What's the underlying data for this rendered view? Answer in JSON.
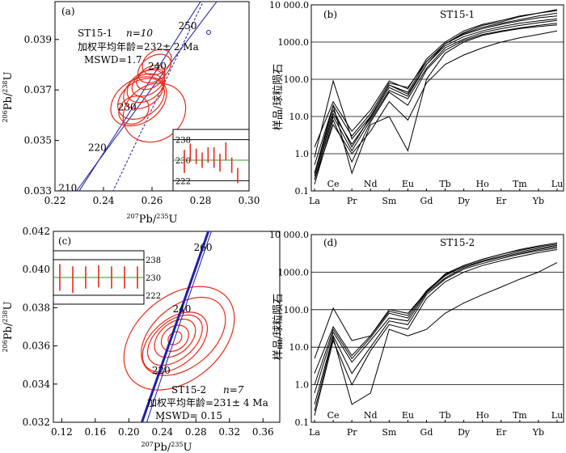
{
  "chart_data": [
    {
      "type": "scatter",
      "panel": "(a)",
      "sample": "ST15-1",
      "n_label": "n=10",
      "stat_age": "加权平均年龄=232± 2 Ma",
      "stat_mswd": "MSWD=1.7",
      "xlim": [
        0.22,
        0.3
      ],
      "ylim": [
        0.033,
        0.0405
      ],
      "xticks": [
        "0.22",
        "0.24",
        "0.26",
        "0.28",
        "0.30"
      ],
      "yticks": [
        "0.033",
        "0.035",
        "0.037",
        "0.039"
      ],
      "xlabel_pre": "207",
      "xlabel_mid": "Pb/",
      "xlabel_sup2": "235",
      "xlabel_post": "U",
      "ylabel_pre": "206",
      "ylabel_mid": "Pb/",
      "ylabel_sup2": "238",
      "ylabel_post": "U",
      "concordia_ages": [
        "210",
        "220",
        "230",
        "240",
        "250"
      ],
      "ellipses": [
        {
          "x": 0.2545,
          "y": 0.03655,
          "rx": 0.0125,
          "ry": 0.00085
        },
        {
          "x": 0.2555,
          "y": 0.03665,
          "rx": 0.0105,
          "ry": 0.0007
        },
        {
          "x": 0.2565,
          "y": 0.03695,
          "rx": 0.009,
          "ry": 0.0006
        },
        {
          "x": 0.2575,
          "y": 0.03715,
          "rx": 0.0085,
          "ry": 0.00055
        },
        {
          "x": 0.2585,
          "y": 0.0373,
          "rx": 0.0075,
          "ry": 0.00045
        },
        {
          "x": 0.2595,
          "y": 0.0375,
          "rx": 0.0065,
          "ry": 0.0004
        },
        {
          "x": 0.261,
          "y": 0.03785,
          "rx": 0.0075,
          "ry": 0.00048
        },
        {
          "x": 0.262,
          "y": 0.0381,
          "rx": 0.0065,
          "ry": 0.00045
        },
        {
          "x": 0.2525,
          "y": 0.0362,
          "rx": 0.0065,
          "ry": 0.00052
        },
        {
          "x": 0.261,
          "y": 0.0361,
          "rx": 0.0135,
          "ry": 0.0011
        }
      ],
      "inset": {
        "yticks": [
          "238",
          "230",
          "222"
        ],
        "mean": 230,
        "bars": [
          {
            "center": 229.5,
            "err": 4.5
          },
          {
            "center": 233,
            "err": 3.5
          },
          {
            "center": 231.5,
            "err": 3
          },
          {
            "center": 230,
            "err": 3
          },
          {
            "center": 232,
            "err": 3
          },
          {
            "center": 231,
            "err": 4
          },
          {
            "center": 229,
            "err": 3.5
          },
          {
            "center": 233.5,
            "err": 3.5
          },
          {
            "center": 228,
            "err": 3
          },
          {
            "center": 224,
            "err": 3
          }
        ]
      }
    },
    {
      "type": "line",
      "panel": "(b)",
      "sample": "ST15-1",
      "ylabel": "样品/球粒陨石",
      "yscale": "log",
      "ylim": [
        0.1,
        10000
      ],
      "yticks": [
        "0.1",
        "1.0",
        "10.0",
        "100.0",
        "1000.0",
        "10 000.0"
      ],
      "xlabels_bottom": [
        "La",
        "Pr",
        "Sm",
        "Gd",
        "Dy",
        "Er",
        "Yb"
      ],
      "xlabels_top": [
        "Ce",
        "Nd",
        "Eu",
        "Tb",
        "Ho",
        "Tm",
        "Lu"
      ],
      "series": [
        {
          "values": [
            0.8,
            90,
            2.5,
            10,
            70,
            40,
            250,
            900,
            1800,
            2800,
            3500,
            4800,
            6000,
            7500
          ]
        },
        {
          "values": [
            1.5,
            25,
            4,
            15,
            90,
            55,
            350,
            1000,
            2000,
            3000,
            3800,
            5000,
            6000,
            7000
          ]
        },
        {
          "values": [
            0.5,
            20,
            3,
            12,
            80,
            60,
            300,
            900,
            1700,
            2500,
            3200,
            4000,
            5000,
            6000
          ]
        },
        {
          "values": [
            0.3,
            15,
            1.5,
            10,
            70,
            45,
            300,
            900,
            1600,
            2300,
            3000,
            3700,
            4500,
            5000
          ]
        },
        {
          "values": [
            0.25,
            12,
            1.8,
            9,
            60,
            35,
            250,
            800,
            1400,
            2000,
            2600,
            3200,
            3700,
            4200
          ]
        },
        {
          "values": [
            0.2,
            10,
            1.2,
            8,
            50,
            30,
            200,
            700,
            1200,
            1800,
            2300,
            2800,
            3300,
            3800
          ]
        },
        {
          "values": [
            0.15,
            8,
            0.6,
            7,
            45,
            20,
            180,
            600,
            1100,
            1600,
            2000,
            2400,
            2800,
            3200
          ]
        },
        {
          "values": [
            0.3,
            20,
            0.3,
            6,
            10,
            1.2,
            100,
            500,
            1000,
            1500,
            1900,
            2300,
            2600,
            2900
          ]
        },
        {
          "values": [
            0.2,
            6,
            1.0,
            4,
            25,
            8,
            80,
            250,
            450,
            700,
            1000,
            1300,
            1600,
            2000
          ]
        }
      ]
    },
    {
      "type": "scatter",
      "panel": "(c)",
      "sample": "ST15-2",
      "n_label": "n=7",
      "stat_age": "加权平均年龄=231± 4 Ma",
      "stat_mswd": "MSWD= 0.15",
      "xlim": [
        0.11,
        0.38
      ],
      "ylim": [
        0.032,
        0.042
      ],
      "xticks": [
        "0.12",
        "0.16",
        "0.20",
        "0.24",
        "0.28",
        "0.32",
        "0.36"
      ],
      "yticks": [
        "0.032",
        "0.034",
        "0.036",
        "0.038",
        "0.040",
        "0.042"
      ],
      "xlabel_pre": "207",
      "xlabel_mid": "Pb/",
      "xlabel_sup2": "235",
      "xlabel_post": "U",
      "ylabel_pre": "206",
      "ylabel_mid": "Pb/",
      "ylabel_sup2": "238",
      "ylabel_post": "U",
      "concordia_ages": [
        "220",
        "240",
        "260"
      ],
      "ellipses": [
        {
          "x": 0.26,
          "y": 0.0364,
          "rx": 0.075,
          "ry": 0.0022
        },
        {
          "x": 0.265,
          "y": 0.0365,
          "rx": 0.058,
          "ry": 0.0016
        },
        {
          "x": 0.255,
          "y": 0.0362,
          "rx": 0.045,
          "ry": 0.0012
        },
        {
          "x": 0.255,
          "y": 0.0363,
          "rx": 0.038,
          "ry": 0.001
        },
        {
          "x": 0.255,
          "y": 0.0364,
          "rx": 0.028,
          "ry": 0.0008
        },
        {
          "x": 0.255,
          "y": 0.0364,
          "rx": 0.018,
          "ry": 0.0006
        },
        {
          "x": 0.255,
          "y": 0.0364,
          "rx": 0.009,
          "ry": 0.0003
        }
      ],
      "inset": {
        "yticks": [
          "238",
          "230",
          "222"
        ],
        "mean": 230,
        "bars": [
          {
            "center": 230,
            "err": 6
          },
          {
            "center": 229,
            "err": 6
          },
          {
            "center": 230,
            "err": 5
          },
          {
            "center": 230.5,
            "err": 5
          },
          {
            "center": 230,
            "err": 5
          },
          {
            "center": 230,
            "err": 5
          },
          {
            "center": 230,
            "err": 5
          }
        ]
      }
    },
    {
      "type": "line",
      "panel": "(d)",
      "sample": "ST15-2",
      "ylabel": "样品/球粒陨石",
      "yscale": "log",
      "ylim": [
        0.1,
        10000
      ],
      "yticks": [
        "0.1",
        "1.0",
        "10.0",
        "100.0",
        "1000.0",
        "10 000.0"
      ],
      "xlabels_bottom": [
        "La",
        "Pr",
        "Sm",
        "Gd",
        "Dy",
        "Er",
        "Yb"
      ],
      "xlabels_top": [
        "Ce",
        "Nd",
        "Eu",
        "Tb",
        "Ho",
        "Tm",
        "Lu"
      ],
      "series": [
        {
          "values": [
            5,
            110,
            15,
            20,
            100,
            80,
            300,
            900,
            1500,
            2200,
            3000,
            4000,
            5000,
            6000
          ]
        },
        {
          "values": [
            2,
            35,
            6,
            20,
            90,
            70,
            320,
            850,
            1500,
            2200,
            3000,
            3800,
            4700,
            5600
          ]
        },
        {
          "values": [
            1,
            30,
            5,
            18,
            80,
            60,
            300,
            800,
            1400,
            2000,
            2700,
            3500,
            4300,
            5200
          ]
        },
        {
          "values": [
            0.6,
            25,
            4,
            15,
            60,
            50,
            280,
            700,
            1300,
            1900,
            2500,
            3200,
            4000,
            4800
          ]
        },
        {
          "values": [
            0.3,
            20,
            2,
            10,
            50,
            40,
            250,
            650,
            1200,
            1700,
            2300,
            3000,
            3700,
            4400
          ]
        },
        {
          "values": [
            0.15,
            15,
            1,
            8,
            40,
            30,
            200,
            550,
            1000,
            1500,
            2000,
            2600,
            3300,
            4000
          ]
        },
        {
          "values": [
            0.2,
            18,
            0.3,
            0.6,
            30,
            20,
            30,
            80,
            150,
            250,
            400,
            650,
            1000,
            1800
          ]
        }
      ]
    }
  ]
}
